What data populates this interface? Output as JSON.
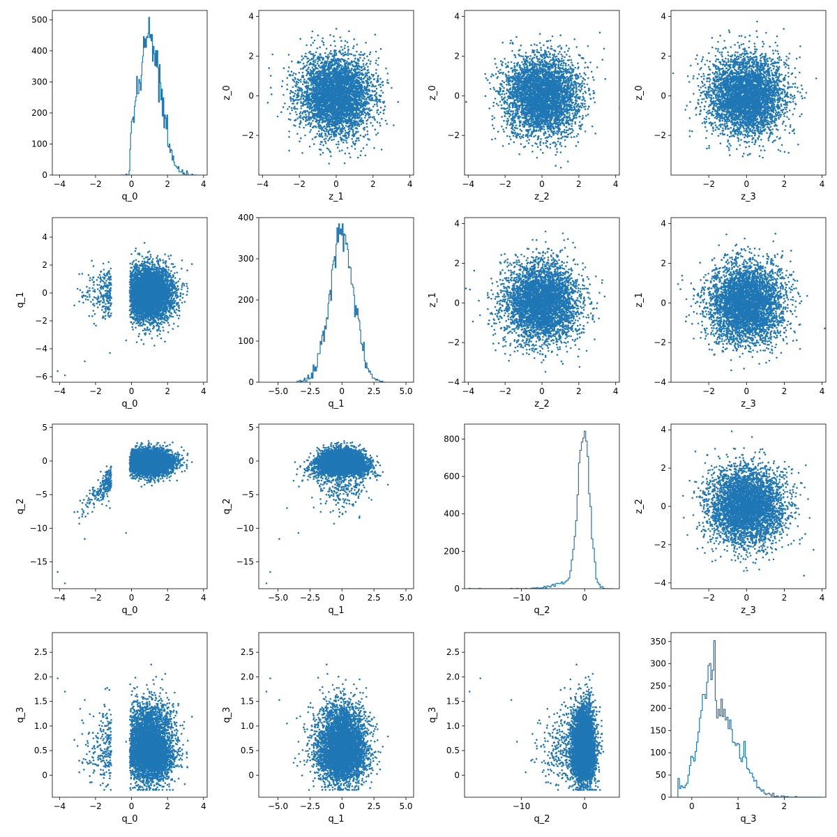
{
  "figure": {
    "layout": "4x4 corner plot",
    "point_color": "#1f77b4",
    "line_color": "#1f77b4",
    "background": "#ffffff"
  },
  "chart_data": [
    {
      "type": "histogram",
      "row": 0,
      "col": 0,
      "xlabel": "q_0",
      "ylabel": "",
      "xlim": [
        -4.4,
        4.2
      ],
      "ylim": [
        0,
        530
      ],
      "xticks": [
        -4,
        -2,
        0,
        2,
        4
      ],
      "yticks": [
        0,
        100,
        200,
        300,
        400,
        500
      ],
      "mean": 1.0,
      "std": 0.65,
      "peak": 508,
      "range": [
        -0.6,
        3.6
      ]
    },
    {
      "type": "scatter",
      "row": 0,
      "col": 1,
      "xlabel": "z_1",
      "ylabel": "z_0",
      "xlim": [
        -4.2,
        4.2
      ],
      "ylim": [
        -4.0,
        4.3
      ],
      "xticks": [
        -4,
        -2,
        0,
        2,
        4
      ],
      "yticks": [
        -2,
        0,
        2,
        4
      ],
      "x_dist": "normal(0,1)",
      "y_dist": "normal(0,1)"
    },
    {
      "type": "scatter",
      "row": 0,
      "col": 2,
      "xlabel": "z_2",
      "ylabel": "z_0",
      "xlim": [
        -4.2,
        4.2
      ],
      "ylim": [
        -4.0,
        4.3
      ],
      "xticks": [
        -4,
        -2,
        0,
        2,
        4
      ],
      "yticks": [
        -2,
        0,
        2,
        4
      ],
      "x_dist": "normal(0,1)",
      "y_dist": "normal(0,1)"
    },
    {
      "type": "scatter",
      "row": 0,
      "col": 3,
      "xlabel": "z_3",
      "ylabel": "z_0",
      "xlim": [
        -4.0,
        4.2
      ],
      "ylim": [
        -4.0,
        4.3
      ],
      "xticks": [
        -2,
        0,
        2,
        4
      ],
      "yticks": [
        -2,
        0,
        2,
        4
      ],
      "x_dist": "normal(0,1)",
      "y_dist": "normal(0,1)"
    },
    {
      "type": "scatter",
      "row": 1,
      "col": 0,
      "xlabel": "q_0",
      "ylabel": "q_1",
      "xlim": [
        -4.4,
        4.2
      ],
      "ylim": [
        -6.4,
        5.4
      ],
      "xticks": [
        -4,
        -2,
        0,
        2,
        4
      ],
      "yticks": [
        -6,
        -4,
        -2,
        0,
        2,
        4
      ],
      "x_dist": "q0",
      "y_dist": "q1"
    },
    {
      "type": "histogram",
      "row": 1,
      "col": 1,
      "xlabel": "q_1",
      "ylabel": "",
      "xlim": [
        -6.5,
        5.6
      ],
      "ylim": [
        0,
        400
      ],
      "xticks": [
        -5.0,
        -2.5,
        0.0,
        2.5,
        5.0
      ],
      "yticks": [
        0,
        100,
        200,
        300,
        400
      ],
      "mean": 0.0,
      "std": 0.95,
      "peak": 385,
      "range": [
        -3.5,
        3.4
      ]
    },
    {
      "type": "scatter",
      "row": 1,
      "col": 2,
      "xlabel": "z_2",
      "ylabel": "z_1",
      "xlim": [
        -4.2,
        4.2
      ],
      "ylim": [
        -4.0,
        4.3
      ],
      "xticks": [
        -4,
        -2,
        0,
        2,
        4
      ],
      "yticks": [
        -4,
        -2,
        0,
        2,
        4
      ],
      "x_dist": "normal(0,1)",
      "y_dist": "normal(0,1)"
    },
    {
      "type": "scatter",
      "row": 1,
      "col": 3,
      "xlabel": "z_3",
      "ylabel": "z_1",
      "xlim": [
        -4.0,
        4.2
      ],
      "ylim": [
        -4.0,
        4.3
      ],
      "xticks": [
        -2,
        0,
        2,
        4
      ],
      "yticks": [
        -4,
        -2,
        0,
        2,
        4
      ],
      "x_dist": "normal(0,1)",
      "y_dist": "normal(0,1)"
    },
    {
      "type": "scatter",
      "row": 2,
      "col": 0,
      "xlabel": "q_0",
      "ylabel": "q_2",
      "xlim": [
        -4.4,
        4.2
      ],
      "ylim": [
        -19,
        5.5
      ],
      "xticks": [
        -4,
        -2,
        0,
        2,
        4
      ],
      "yticks": [
        -15,
        -10,
        -5,
        0,
        5
      ],
      "x_dist": "q0",
      "y_dist": "q2"
    },
    {
      "type": "scatter",
      "row": 2,
      "col": 1,
      "xlabel": "q_1",
      "ylabel": "q_2",
      "xlim": [
        -6.5,
        5.6
      ],
      "ylim": [
        -19,
        5.5
      ],
      "xticks": [
        -5.0,
        -2.5,
        0.0,
        2.5,
        5.0
      ],
      "yticks": [
        -15,
        -10,
        -5,
        0,
        5
      ],
      "x_dist": "q1",
      "y_dist": "q2"
    },
    {
      "type": "histogram",
      "row": 2,
      "col": 2,
      "xlabel": "q_2",
      "ylabel": "",
      "xlim": [
        -19,
        5.5
      ],
      "ylim": [
        0,
        880
      ],
      "xticks": [
        -10,
        0
      ],
      "yticks": [
        0,
        200,
        400,
        600,
        800
      ],
      "mean": 0.1,
      "std": 0.9,
      "peak": 842,
      "range": [
        -18.3,
        4.5
      ]
    },
    {
      "type": "scatter",
      "row": 2,
      "col": 3,
      "xlabel": "z_3",
      "ylabel": "z_2",
      "xlim": [
        -4.0,
        4.2
      ],
      "ylim": [
        -4.3,
        4.3
      ],
      "xticks": [
        -2,
        0,
        2,
        4
      ],
      "yticks": [
        -4,
        -2,
        0,
        2,
        4
      ],
      "x_dist": "normal(0,1)",
      "y_dist": "normal(0,1)"
    },
    {
      "type": "scatter",
      "row": 3,
      "col": 0,
      "xlabel": "q_0",
      "ylabel": "q_3",
      "xlim": [
        -4.4,
        4.2
      ],
      "ylim": [
        -0.45,
        2.9
      ],
      "xticks": [
        -4,
        -2,
        0,
        2,
        4
      ],
      "yticks": [
        0.0,
        0.5,
        1.0,
        1.5,
        2.0,
        2.5
      ],
      "x_dist": "q0",
      "y_dist": "q3"
    },
    {
      "type": "scatter",
      "row": 3,
      "col": 1,
      "xlabel": "q_1",
      "ylabel": "q_3",
      "xlim": [
        -6.5,
        5.6
      ],
      "ylim": [
        -0.45,
        2.9
      ],
      "xticks": [
        -5.0,
        -2.5,
        0.0,
        2.5,
        5.0
      ],
      "yticks": [
        0.0,
        0.5,
        1.0,
        1.5,
        2.0,
        2.5
      ],
      "x_dist": "q1",
      "y_dist": "q3"
    },
    {
      "type": "scatter",
      "row": 3,
      "col": 2,
      "xlabel": "q_2",
      "ylabel": "q_3",
      "xlim": [
        -19,
        5.5
      ],
      "ylim": [
        -0.45,
        2.9
      ],
      "xticks": [
        -10,
        0
      ],
      "yticks": [
        0.0,
        0.5,
        1.0,
        1.5,
        2.0,
        2.5
      ],
      "x_dist": "q2",
      "y_dist": "q3"
    },
    {
      "type": "histogram",
      "row": 3,
      "col": 3,
      "xlabel": "q_3",
      "ylabel": "",
      "xlim": [
        -0.45,
        2.9
      ],
      "ylim": [
        0,
        370
      ],
      "xticks": [
        0,
        1,
        2
      ],
      "yticks": [
        0,
        50,
        100,
        150,
        200,
        250,
        300,
        350
      ],
      "mean": 0.5,
      "std": 0.35,
      "peak": 352,
      "range": [
        -0.3,
        2.8
      ]
    }
  ]
}
